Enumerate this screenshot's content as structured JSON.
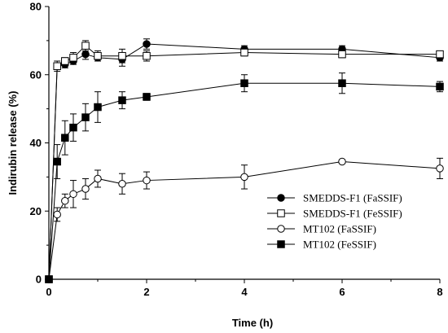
{
  "chart_data": {
    "type": "line",
    "title": "",
    "xlabel": "Time (h)",
    "ylabel": "Indirubin release (%)",
    "xlim": [
      0,
      8
    ],
    "ylim": [
      0,
      80
    ],
    "xticks": [
      0,
      2,
      4,
      6,
      8
    ],
    "yticks": [
      0,
      20,
      40,
      60,
      80
    ],
    "grid": false,
    "legend_position": "center-right",
    "series": [
      {
        "name": "SMEDDS-F1 (FaSSIF)",
        "marker": "filled-circle",
        "x": [
          0,
          0.17,
          0.33,
          0.5,
          0.75,
          1,
          1.5,
          2,
          4,
          6,
          8
        ],
        "y": [
          0,
          62.5,
          63,
          64,
          66,
          65,
          64.5,
          69,
          67.5,
          67.5,
          65
        ],
        "err": [
          0,
          1,
          1,
          1,
          1.5,
          1,
          2,
          1.5,
          1,
          1,
          1
        ]
      },
      {
        "name": "SMEDDS-F1 (FeSSIF)",
        "marker": "open-square",
        "x": [
          0,
          0.17,
          0.33,
          0.5,
          0.75,
          1,
          1.5,
          2,
          4,
          6,
          8
        ],
        "y": [
          0,
          62.5,
          64,
          65,
          68.5,
          65.5,
          65.5,
          65.5,
          66.5,
          66,
          66
        ],
        "err": [
          0,
          1.5,
          1,
          1.5,
          1.5,
          1.5,
          2,
          1.5,
          1,
          1,
          1
        ]
      },
      {
        "name": "MT102 (FaSSIF)",
        "marker": "open-circle",
        "x": [
          0,
          0.17,
          0.33,
          0.5,
          0.75,
          1,
          1.5,
          2,
          4,
          6,
          8
        ],
        "y": [
          0,
          19,
          23,
          25,
          26.5,
          29.5,
          28,
          29,
          30,
          34.5,
          32.5
        ],
        "err": [
          0,
          2,
          2,
          4,
          3,
          2.5,
          3,
          2.5,
          3.5,
          0.5,
          3
        ]
      },
      {
        "name": "MT102 (FeSSIF)",
        "marker": "filled-square",
        "x": [
          0,
          0.17,
          0.33,
          0.5,
          0.75,
          1,
          1.5,
          2,
          4,
          6,
          8
        ],
        "y": [
          0,
          34.5,
          41.5,
          44.5,
          47.5,
          50.5,
          52.5,
          53.5,
          57.5,
          57.5,
          56.5
        ],
        "err": [
          0,
          5,
          5,
          4,
          4,
          4.5,
          2.5,
          1,
          2.5,
          3,
          1.5
        ]
      }
    ]
  }
}
